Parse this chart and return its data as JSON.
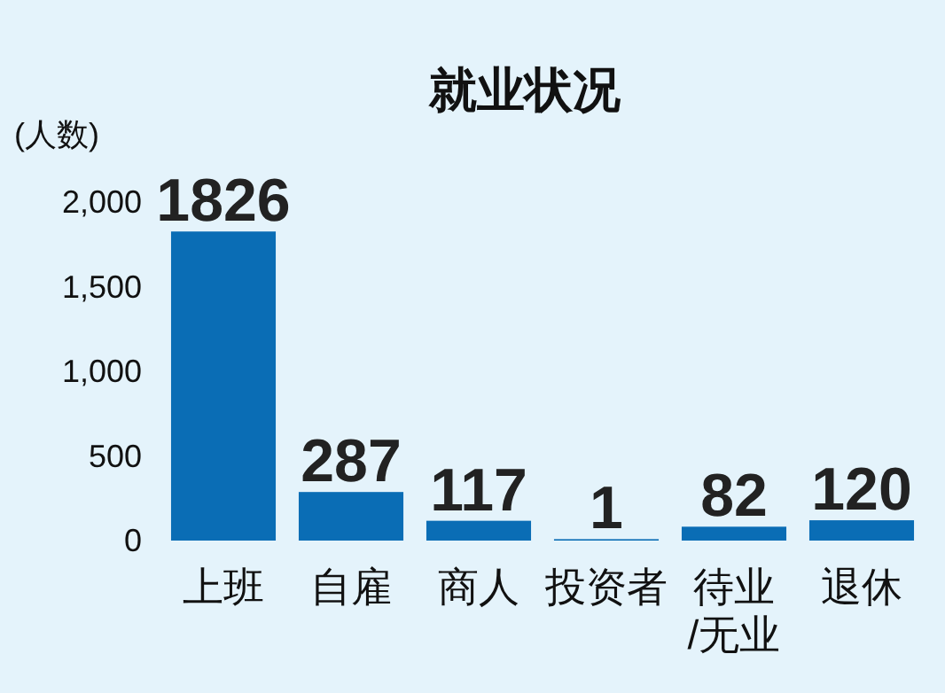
{
  "chart_data": {
    "type": "bar",
    "title": "就业状况",
    "ylabel": "(人数)",
    "categories": [
      "上班",
      "自雇",
      "商人",
      "投资者",
      "待业/无业",
      "退休"
    ],
    "values": [
      1826,
      287,
      117,
      1,
      82,
      120
    ],
    "color": "#0a6db5",
    "ylim": [
      0,
      2000
    ],
    "yticks": [
      0,
      500,
      {
        "value": 1000,
        "label": "1,000"
      },
      {
        "value": 1500,
        "label": "1,500"
      },
      {
        "value": 2000,
        "label": "2,000"
      }
    ],
    "data_labels": true
  }
}
